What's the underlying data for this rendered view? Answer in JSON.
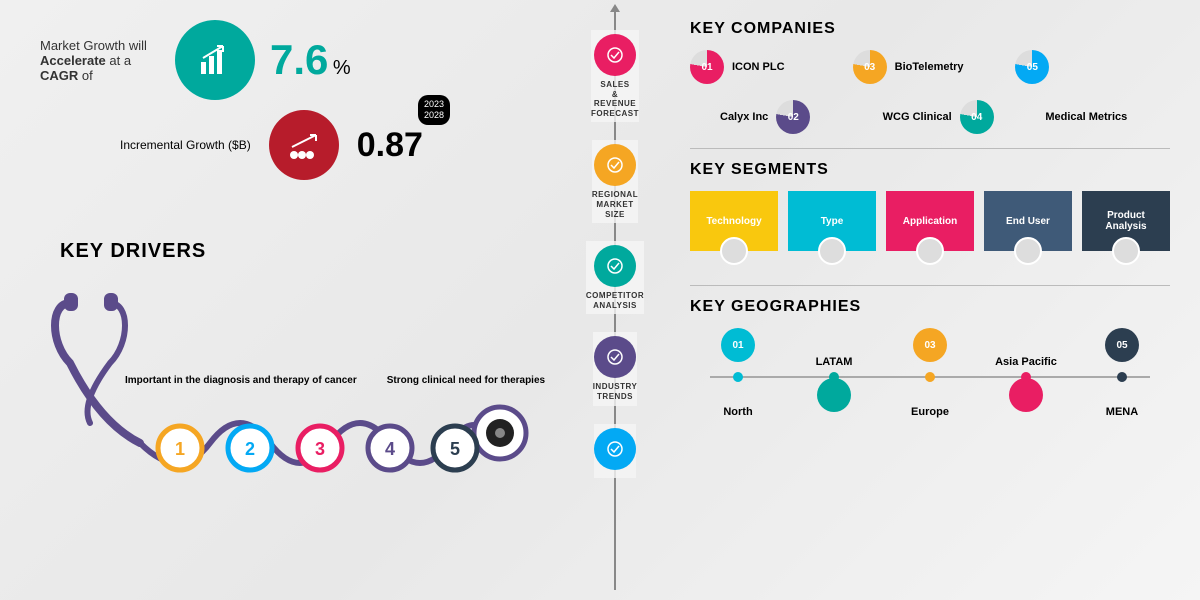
{
  "colors": {
    "teal": "#00a99d",
    "red": "#b71c2b",
    "orange": "#f5a623",
    "pink": "#e91e63",
    "blue": "#03a9f4",
    "navy": "#2c3e50",
    "purple": "#5b4b8a",
    "cyan": "#00bcd4",
    "grey": "#757575",
    "yellow": "#f9c80e"
  },
  "growth": {
    "text_pre": "Market Growth will ",
    "text_bold1": "Accelerate",
    "text_mid": " at a ",
    "text_bold2": "CAGR",
    "text_post": " of",
    "pct_value": "7.6",
    "pct_sign": "%",
    "pct_color": "#00a99d",
    "icon_bg": "#00a99d"
  },
  "incremental": {
    "label": "Incremental Growth ($B)",
    "value": "0.87",
    "value_color": "#333333",
    "icon_bg": "#b71c2b",
    "year_top": "2023",
    "year_bot": "2028"
  },
  "key_drivers": {
    "title": "KEY DRIVERS",
    "text1": "Important in the diagnosis and therapy of cancer",
    "text2": "Strong clinical need for therapies",
    "nodes": [
      {
        "num": "1",
        "color": "#f5a623"
      },
      {
        "num": "2",
        "color": "#03a9f4"
      },
      {
        "num": "3",
        "color": "#e91e63"
      },
      {
        "num": "4",
        "color": "#5b4b8a"
      },
      {
        "num": "5",
        "color": "#2c3e50"
      }
    ],
    "stethoscope_color": "#5b4b8a"
  },
  "center": [
    {
      "label": "SALES & REVENUE FORECAST",
      "color": "#e91e63"
    },
    {
      "label": "REGIONAL MARKET SIZE",
      "color": "#f5a623"
    },
    {
      "label": "COMPETITOR ANALYSIS",
      "color": "#00a99d"
    },
    {
      "label": "INDUSTRY TRENDS",
      "color": "#5b4b8a"
    },
    {
      "label": "",
      "color": "#03a9f4"
    }
  ],
  "key_companies": {
    "title": "KEY COMPANIES",
    "items": [
      {
        "num": "01",
        "name": "ICON PLC",
        "color": "#e91e63"
      },
      {
        "num": "03",
        "name": "BioTelemetry",
        "color": "#f5a623"
      },
      {
        "num": "05",
        "name": "",
        "color": "#03a9f4"
      },
      {
        "num": "02",
        "name": "Calyx Inc",
        "color": "#5b4b8a",
        "offset": true,
        "label_left": true
      },
      {
        "num": "04",
        "name": "WCG Clinical",
        "color": "#00a99d",
        "offset": true,
        "label_left": true
      },
      {
        "num": "",
        "name": "Medical Metrics",
        "color": "",
        "offset": true,
        "label_left": true,
        "no_donut": true
      }
    ]
  },
  "key_segments": {
    "title": "KEY SEGMENTS",
    "items": [
      {
        "label": "Technology",
        "color": "#f9c80e"
      },
      {
        "label": "Type",
        "color": "#00bcd4"
      },
      {
        "label": "Application",
        "color": "#e91e63"
      },
      {
        "label": "End User",
        "color": "#3f5a78"
      },
      {
        "label": "Product Analysis",
        "color": "#2c3e50"
      }
    ]
  },
  "key_geographies": {
    "title": "KEY GEOGRAPHIES",
    "items": [
      {
        "num": "01",
        "label": "North",
        "color": "#00bcd4",
        "pos": "up"
      },
      {
        "num": "",
        "label": "LATAM",
        "color": "#00a99d",
        "pos": "down"
      },
      {
        "num": "03",
        "label": "Europe",
        "color": "#f5a623",
        "pos": "up",
        "label_below": true
      },
      {
        "num": "",
        "label": "Asia Pacific",
        "color": "#e91e63",
        "pos": "down"
      },
      {
        "num": "05",
        "label": "MENA",
        "color": "#2c3e50",
        "pos": "up",
        "label_below": true
      }
    ]
  }
}
